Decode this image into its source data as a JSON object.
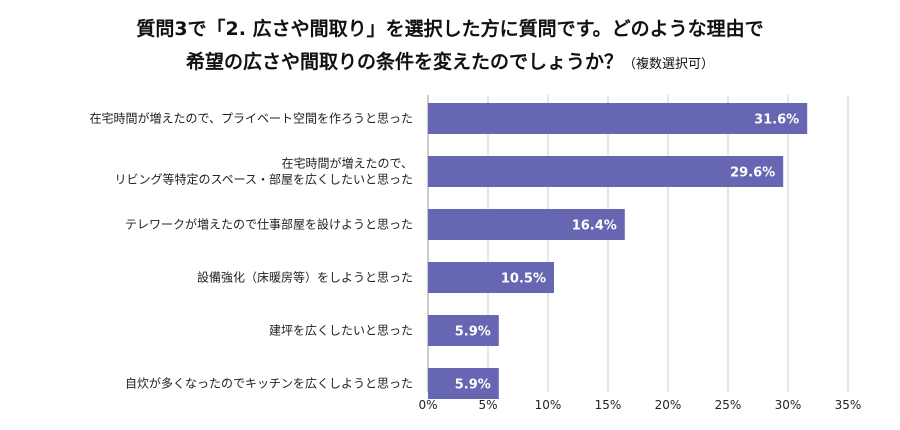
{
  "title_line1": "質問3で「2. 広さや間取り」を選択した方に質問です。どのような理由で",
  "title_line2": "希望の広さや間取りの条件を変えたのでしょうか？",
  "title_note": "（複数選択可）",
  "colors": {
    "bar": "#6666b3",
    "grid": "#cccccc",
    "axis": "#999999"
  },
  "chart_data": {
    "type": "bar",
    "orientation": "horizontal",
    "categories": [
      [
        "在宅時間が増えたので、プライベート空間を作ろうと思った"
      ],
      [
        "在宅時間が増えたので、",
        "リビング等特定のスペース・部屋を広くしたいと思った"
      ],
      [
        "テレワークが増えたので仕事部屋を設けようと思った"
      ],
      [
        "設備強化（床暖房等）をしようと思った"
      ],
      [
        "建坪を広くしたいと思った"
      ],
      [
        "自炊が多くなったのでキッチンを広くしようと思った"
      ]
    ],
    "values": [
      31.6,
      29.6,
      16.4,
      10.5,
      5.9,
      5.9
    ],
    "value_labels": [
      "31.6%",
      "29.6%",
      "16.4%",
      "10.5%",
      "5.9%",
      "5.9%"
    ],
    "xlim": [
      0,
      35
    ],
    "xticks": [
      0,
      5,
      10,
      15,
      20,
      25,
      30,
      35
    ],
    "xtick_labels": [
      "0%",
      "5%",
      "10%",
      "15%",
      "20%",
      "25%",
      "30%",
      "35%"
    ],
    "grid": true
  }
}
